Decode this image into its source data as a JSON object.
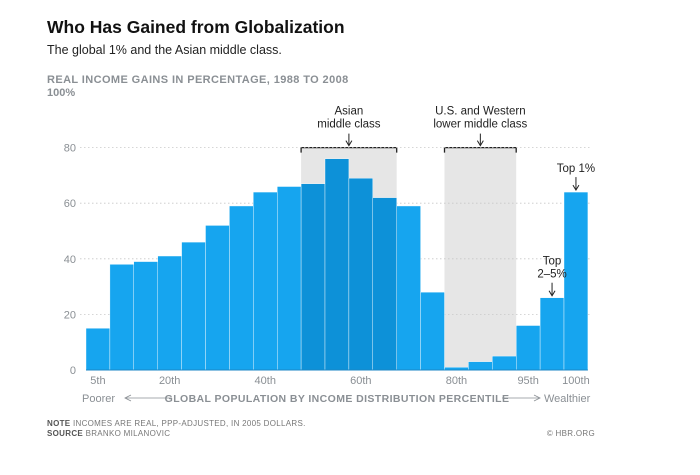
{
  "header": {
    "title": "Who Has Gained from Globalization",
    "subtitle": "The global 1% and the Asian middle class."
  },
  "chart_data": {
    "type": "bar",
    "title": "Who Has Gained from Globalization",
    "subtitle": "The global 1% and the Asian middle class.",
    "ylabel": "REAL INCOME GAINS IN PERCENTAGE, 1988 TO 2008",
    "xlabel": "GLOBAL POPULATION BY INCOME DISTRIBUTION PERCENTILE",
    "ylim": [
      0,
      100
    ],
    "yticks": [
      0,
      20,
      40,
      60,
      80
    ],
    "ytick_top_label": "100%",
    "values": [
      15,
      38,
      39,
      41,
      46,
      52,
      59,
      64,
      66,
      67,
      76,
      69,
      62,
      59,
      28,
      1,
      3,
      5,
      16,
      26,
      64
    ],
    "highlight_indices": [
      9,
      10,
      11,
      12
    ],
    "xtick_labels": [
      {
        "label": "5th",
        "bar_index": 0
      },
      {
        "label": "20th",
        "bar_index": 3
      },
      {
        "label": "40th",
        "bar_index": 7
      },
      {
        "label": "60th",
        "bar_index": 11
      },
      {
        "label": "80th",
        "bar_index": 15
      },
      {
        "label": "95th",
        "bar_index": 18
      },
      {
        "label": "100th",
        "bar_index": 20
      }
    ],
    "x_left_label": "Poorer",
    "x_right_label": "Wealthier",
    "annotations": [
      {
        "text": "Asian middle class",
        "lines": [
          "Asian",
          "middle class"
        ],
        "bar_start": 9,
        "bar_end": 12
      },
      {
        "text": "U.S. and Western lower middle class",
        "lines": [
          "U.S. and Western",
          "lower middle class"
        ],
        "bar_start": 15,
        "bar_end": 17
      }
    ],
    "point_labels": [
      {
        "text": "Top 2–5%",
        "lines": [
          "Top",
          "2–5%"
        ],
        "bar_index": 19
      },
      {
        "text": "Top 1%",
        "lines": [
          "Top 1%"
        ],
        "bar_index": 20
      }
    ],
    "colors": {
      "bar": "#16a5ef",
      "bar_highlight": "#0d91d8",
      "shade": "#e6e6e6",
      "shade_border": "#222222",
      "grid": "#c8c8c8",
      "axis_text": "#8a8f94"
    }
  },
  "footer": {
    "note_label": "NOTE",
    "note_text": "INCOMES ARE REAL, PPP-ADJUSTED, IN 2005 DOLLARS.",
    "source_label": "SOURCE",
    "source_text": "BRANKO MILANOVIC",
    "credit": "© HBR.ORG"
  }
}
